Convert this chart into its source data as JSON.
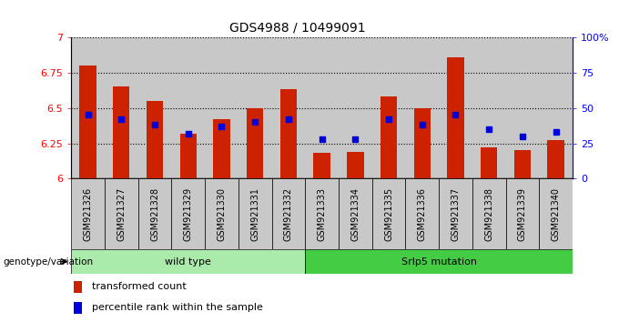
{
  "title": "GDS4988 / 10499091",
  "samples": [
    "GSM921326",
    "GSM921327",
    "GSM921328",
    "GSM921329",
    "GSM921330",
    "GSM921331",
    "GSM921332",
    "GSM921333",
    "GSM921334",
    "GSM921335",
    "GSM921336",
    "GSM921337",
    "GSM921338",
    "GSM921339",
    "GSM921340"
  ],
  "red_values": [
    6.8,
    6.65,
    6.55,
    6.32,
    6.42,
    6.5,
    6.63,
    6.18,
    6.19,
    6.58,
    6.5,
    6.86,
    6.22,
    6.2,
    6.27
  ],
  "blue_pct": [
    45,
    42,
    38,
    32,
    37,
    40,
    42,
    28,
    28,
    42,
    38,
    45,
    35,
    30,
    33
  ],
  "ymin": 6.0,
  "ymax": 7.0,
  "yticks_left": [
    6.0,
    6.25,
    6.5,
    6.75,
    7.0
  ],
  "ytick_labels_left": [
    "6",
    "6.25",
    "6.5",
    "6.75",
    "7"
  ],
  "yticks_right": [
    0,
    25,
    50,
    75,
    100
  ],
  "ytick_labels_right": [
    "0",
    "25",
    "50",
    "75",
    "100%"
  ],
  "wild_type_count": 7,
  "group_labels": [
    "wild type",
    "Srlp5 mutation"
  ],
  "wt_color": "#AAEAAA",
  "mut_color": "#44CC44",
  "bar_color": "#CC2200",
  "dot_color": "#0000DD",
  "col_bg": "#C8C8C8",
  "legend_items": [
    "transformed count",
    "percentile rank within the sample"
  ]
}
